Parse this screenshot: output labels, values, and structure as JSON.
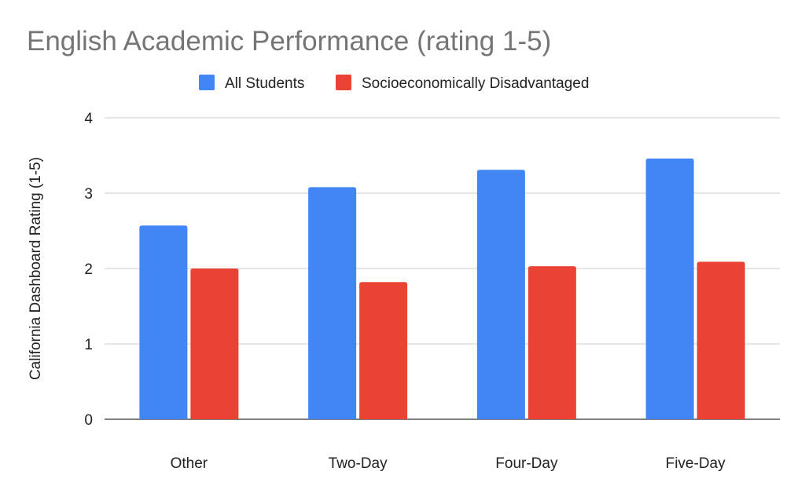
{
  "chart_data": {
    "type": "bar",
    "title": "English Academic Performance (rating 1-5)",
    "xlabel": "",
    "ylabel": "California Dashboard Rating (1-5)",
    "categories": [
      "Other",
      "Two-Day",
      "Four-Day",
      "Five-Day"
    ],
    "series": [
      {
        "name": "All Students",
        "color": "#4285f4",
        "values": [
          2.57,
          3.08,
          3.31,
          3.46
        ]
      },
      {
        "name": "Socioeconomically Disadvantaged",
        "color": "#ea4335",
        "values": [
          2.0,
          1.82,
          2.03,
          2.09
        ]
      }
    ],
    "ylim": [
      0,
      4
    ],
    "yticks": [
      "0",
      "1",
      "2",
      "3",
      "4"
    ],
    "grid": true,
    "legend_position": "top"
  }
}
